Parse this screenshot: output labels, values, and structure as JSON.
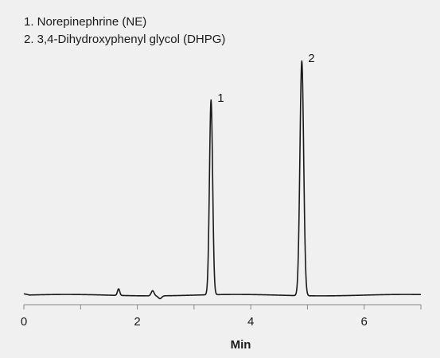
{
  "chart_data": {
    "type": "line",
    "title": "",
    "xlabel": "Min",
    "ylabel": "",
    "xlim": [
      0,
      7
    ],
    "x_ticks": [
      0,
      2,
      4,
      6
    ],
    "x_tick_labels": [
      "0",
      "2",
      "4",
      "6"
    ],
    "grid": false,
    "legend": {
      "placement": "top-left",
      "items": [
        "1. Norepinephrine (NE)",
        "2. 3,4-Dihydroxyphenyl glycol (DHPG)"
      ]
    },
    "peaks": [
      {
        "label": "1",
        "x": 3.3,
        "height": 0.83,
        "width": 0.028
      },
      {
        "label": "2",
        "x": 4.9,
        "height": 1.0,
        "width": 0.033
      }
    ],
    "minor_features": [
      {
        "x": 1.67,
        "height": 0.028,
        "width": 0.02
      },
      {
        "x": 2.27,
        "height": 0.022,
        "width": 0.025
      },
      {
        "x": 2.4,
        "height": -0.012,
        "width": 0.03
      }
    ],
    "line_color": "#1a1a1a",
    "background_color": "#f0f0f0"
  }
}
